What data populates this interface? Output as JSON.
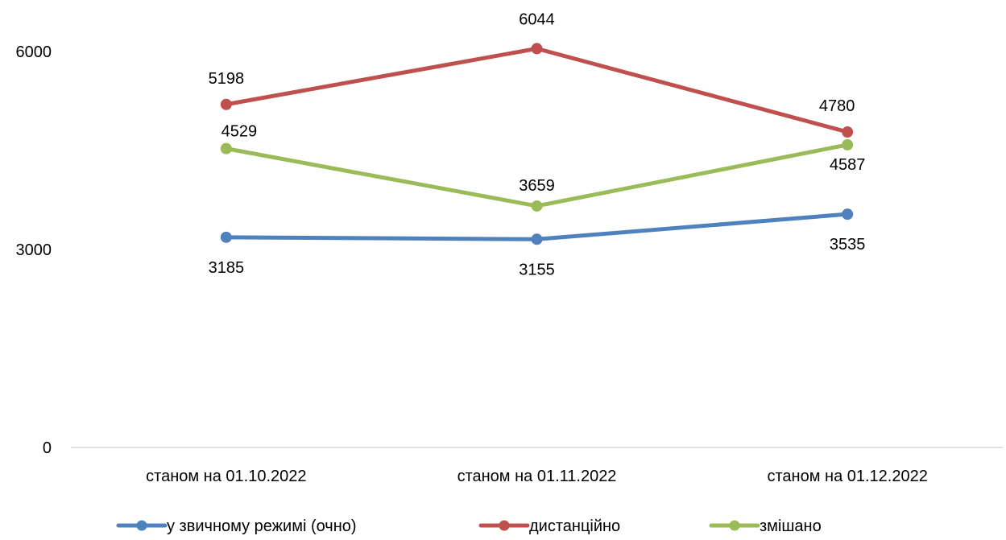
{
  "chart_data": {
    "type": "line",
    "categories": [
      "станом на 01.10.2022",
      "станом на 01.11.2022",
      "станом на 01.12.2022"
    ],
    "series": [
      {
        "name": "у звичному режимі (очно)",
        "color": "#4f81bd",
        "values": [
          3185,
          3155,
          3535
        ],
        "label_position": "below"
      },
      {
        "name": "дистанційно",
        "color": "#c0504d",
        "values": [
          5198,
          6044,
          4780
        ],
        "label_position": "above"
      },
      {
        "name": "змішано",
        "color": "#9bbb59",
        "values": [
          4529,
          3659,
          4587
        ],
        "label_position": "mixed"
      }
    ],
    "yticks": [
      0,
      3000,
      6000
    ],
    "ylim": [
      0,
      6600
    ],
    "grid": false,
    "legend_position": "bottom",
    "xlabel": "",
    "ylabel": "",
    "title": ""
  }
}
